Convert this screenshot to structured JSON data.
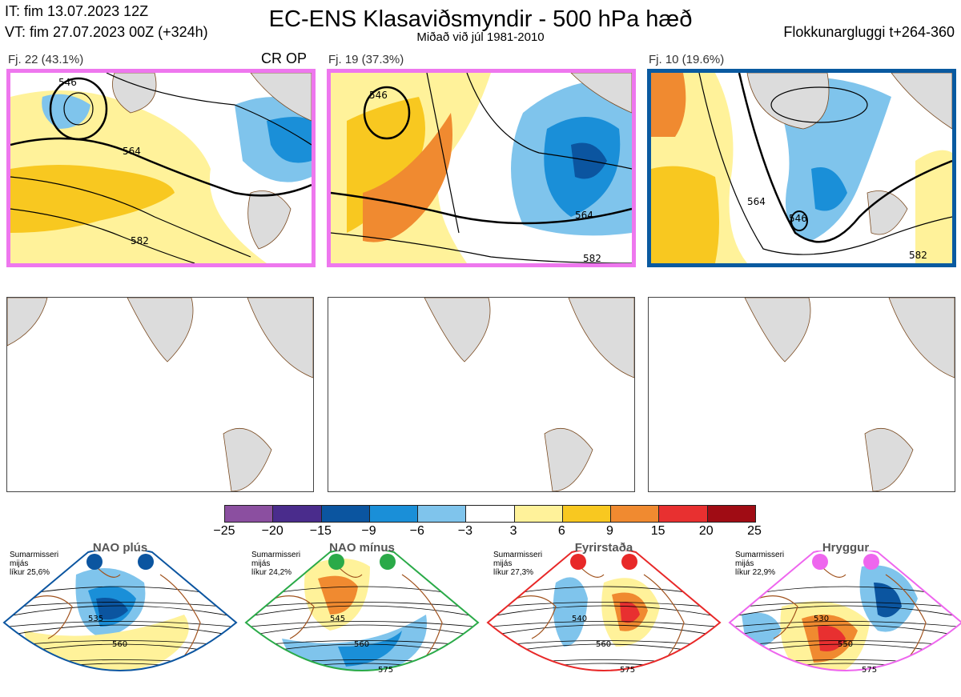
{
  "header": {
    "title": "EC-ENS Klasaviðsmyndir - 500 hPa hæð",
    "subtitle": "Miðað við júl 1981-2010",
    "initial_time": "IT: fim 13.07.2023 12Z",
    "valid_time": "VT: fim 27.07.2023 00Z  (+324h)",
    "window": "Flokkunargluggi t+264-360"
  },
  "clusters": [
    {
      "label": "Fj. 22 (43.1%)",
      "members": 22,
      "percent": 43.1,
      "tag": "CR OP",
      "border_color": "#ee77ee",
      "contours": [
        "546",
        "564",
        "582"
      ]
    },
    {
      "label": "Fj. 19 (37.3%)",
      "members": 19,
      "percent": 37.3,
      "tag": "",
      "border_color": "#ee77ee",
      "contours": [
        "546",
        "564",
        "582"
      ]
    },
    {
      "label": "Fj. 10 (19.6%)",
      "members": 10,
      "percent": 19.6,
      "tag": "",
      "border_color": "#0a5aa0",
      "contours": [
        "546",
        "564",
        "582"
      ]
    }
  ],
  "colorbar": {
    "ticks": [
      "−25",
      "−20",
      "−15",
      "−9",
      "−6",
      "−3",
      "3",
      "6",
      "9",
      "15",
      "20",
      "25"
    ],
    "colors": [
      "#8b4fa0",
      "#4a2c8c",
      "#0b55a0",
      "#1a8fd8",
      "#7fc4ec",
      "#ffffff",
      "#fff29a",
      "#f8c820",
      "#f08a30",
      "#e83030",
      "#a00c14"
    ]
  },
  "regimes": [
    {
      "name": "NAO plús",
      "info": [
        "Sumarmisseri",
        "mijás",
        "líkur 25,6%"
      ],
      "color": "#0b55a0",
      "contours": [
        "535",
        "560"
      ]
    },
    {
      "name": "NAO mínus",
      "info": [
        "Sumarmisseri",
        "mijás",
        "líkur 24,2%"
      ],
      "color": "#2aaa48",
      "contours": [
        "545",
        "560",
        "575"
      ]
    },
    {
      "name": "Fyrirstaða",
      "info": [
        "Sumarmisseri",
        "mijás",
        "líkur 27,3%"
      ],
      "color": "#e82828",
      "contours": [
        "540",
        "560",
        "575"
      ]
    },
    {
      "name": "Hryggur",
      "info": [
        "Sumarmisseri",
        "mijás",
        "líkur 22,9%"
      ],
      "color": "#ee66ee",
      "contours": [
        "530",
        "550",
        "575"
      ]
    }
  ]
}
